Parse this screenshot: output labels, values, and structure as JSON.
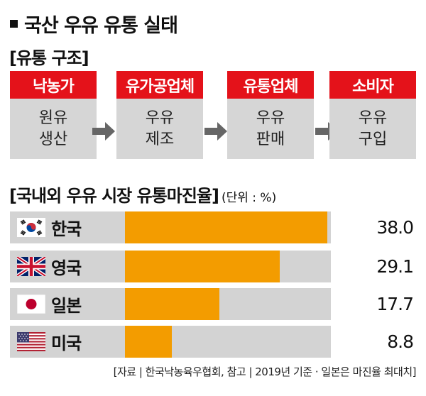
{
  "title": "국산 우유 유통 실태",
  "flow_section": {
    "label": "[유통 구조]",
    "stages": [
      {
        "head": "낙농가",
        "line1": "원유",
        "line2": "생산"
      },
      {
        "head": "유가공업체",
        "line1": "우유",
        "line2": "제조"
      },
      {
        "head": "유통업체",
        "line1": "우유",
        "line2": "판매"
      },
      {
        "head": "소비자",
        "line1": "우유",
        "line2": "구입"
      }
    ]
  },
  "chart_section": {
    "label": "[국내외 우유 시장 유통마진율]",
    "unit": "(단위 : %)"
  },
  "chart_data": {
    "type": "bar",
    "orientation": "horizontal",
    "categories": [
      "한국",
      "영국",
      "일본",
      "미국"
    ],
    "values": [
      38.0,
      29.1,
      17.7,
      8.8
    ],
    "value_labels": [
      "38.0",
      "29.1",
      "17.7",
      "8.8"
    ],
    "title": "[국내외 우유 시장 유통마진율]",
    "unit": "(단위 : %)",
    "xlim": [
      0,
      38.0
    ]
  },
  "colors": {
    "accent_red": "#e4121a",
    "bar_fill": "#f39c00",
    "bar_track": "#d3d3d3",
    "stage_body": "#d6d6d6",
    "arrow": "#666666"
  },
  "flags": [
    "korea-flag-icon",
    "uk-flag-icon",
    "japan-flag-icon",
    "usa-flag-icon"
  ],
  "source": "[자료 | 한국낙농육우협회, 참고 | 2019년 기준 · 일본은 마진율 최대치]"
}
